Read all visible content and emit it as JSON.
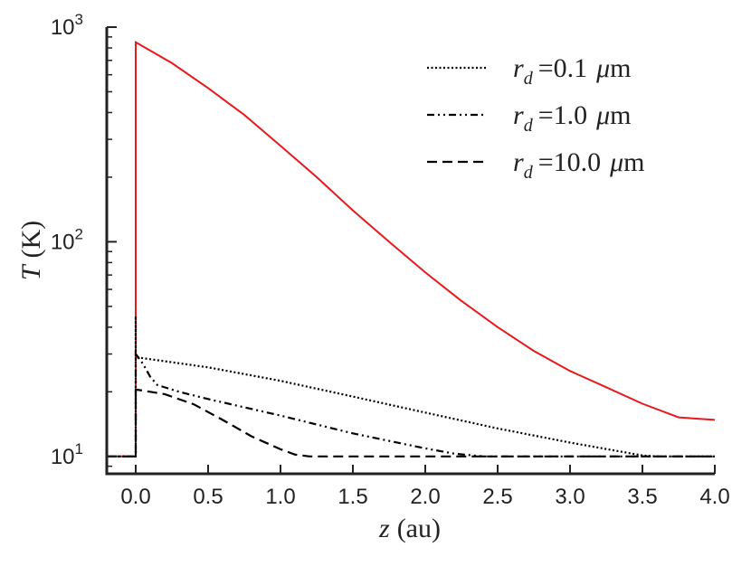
{
  "chart_data": {
    "type": "line",
    "title": "",
    "xlabel": {
      "var": "z",
      "unit": "(au)"
    },
    "ylabel": {
      "var": "T",
      "unit": "(K)"
    },
    "xlim": [
      -0.2,
      4.0
    ],
    "ylim": [
      8.3,
      1000
    ],
    "yscale": "log",
    "grid": false,
    "legend_position": "top-right",
    "x_ticks": [
      "0.0",
      "0.5",
      "1.0",
      "1.5",
      "2.0",
      "2.5",
      "3.0",
      "3.5",
      "4.0"
    ],
    "x_tick_values": [
      0.0,
      0.5,
      1.0,
      1.5,
      2.0,
      2.5,
      3.0,
      3.5,
      4.0
    ],
    "y_ticks": [
      {
        "base": "10",
        "exp": "1",
        "value": 10
      },
      {
        "base": "10",
        "exp": "2",
        "value": 100
      },
      {
        "base": "10",
        "exp": "3",
        "value": 1000
      }
    ],
    "series": [
      {
        "color": "#e8191c",
        "style": "solid",
        "x": [
          -0.2,
          -0.001,
          0.0,
          0.0,
          0.25,
          0.5,
          0.75,
          1.0,
          1.25,
          1.5,
          1.75,
          2.0,
          2.25,
          2.5,
          2.75,
          3.0,
          3.25,
          3.5,
          3.75,
          4.0
        ],
        "y": [
          10,
          10,
          10,
          850,
          680,
          520,
          390,
          280,
          200,
          140,
          100,
          72,
          53,
          40,
          31,
          25,
          21,
          17.6,
          15.2,
          14.8
        ]
      },
      {
        "name": "r_d =0.1 μm",
        "label_parts": {
          "var": "r",
          "sub": "d",
          "value": "=0.1",
          "unit_symbol": "μ",
          "unit": "m"
        },
        "color": "#000000",
        "style": "dotted",
        "x": [
          -0.2,
          -0.001,
          0.0,
          0.0,
          0.0,
          0.5,
          1.0,
          1.5,
          2.0,
          2.5,
          3.0,
          3.5,
          3.6,
          4.0
        ],
        "y": [
          10,
          10,
          10,
          45,
          29,
          26,
          22.5,
          19,
          16,
          13.5,
          11.6,
          10.1,
          10,
          10
        ]
      },
      {
        "name": "r_d =1.0 μm",
        "label_parts": {
          "var": "r",
          "sub": "d",
          "value": "=1.0",
          "unit_symbol": "μ",
          "unit": "m"
        },
        "color": "#000000",
        "style": "dashdotdot",
        "x": [
          -0.2,
          -0.001,
          0.0,
          0.0,
          0.05,
          0.1,
          0.15,
          0.3,
          0.5,
          1.0,
          1.5,
          2.0,
          2.2,
          2.4,
          4.0
        ],
        "y": [
          10,
          10,
          10,
          30,
          27,
          23.5,
          21.5,
          20,
          18.5,
          15.5,
          12.8,
          10.9,
          10.3,
          10,
          10
        ]
      },
      {
        "name": "r_d =10.0 μm",
        "label_parts": {
          "var": "r",
          "sub": "d",
          "value": "=10.0",
          "unit_symbol": "μ",
          "unit": "m"
        },
        "color": "#000000",
        "style": "dashed",
        "x": [
          -0.2,
          -0.001,
          0.0,
          0.0,
          0.2,
          0.4,
          0.6,
          0.8,
          1.0,
          1.1,
          1.2,
          1.3,
          4.0
        ],
        "y": [
          10,
          10,
          10,
          20.5,
          19.5,
          17.5,
          14.8,
          12.4,
          10.8,
          10.2,
          10,
          10,
          10
        ]
      }
    ]
  }
}
